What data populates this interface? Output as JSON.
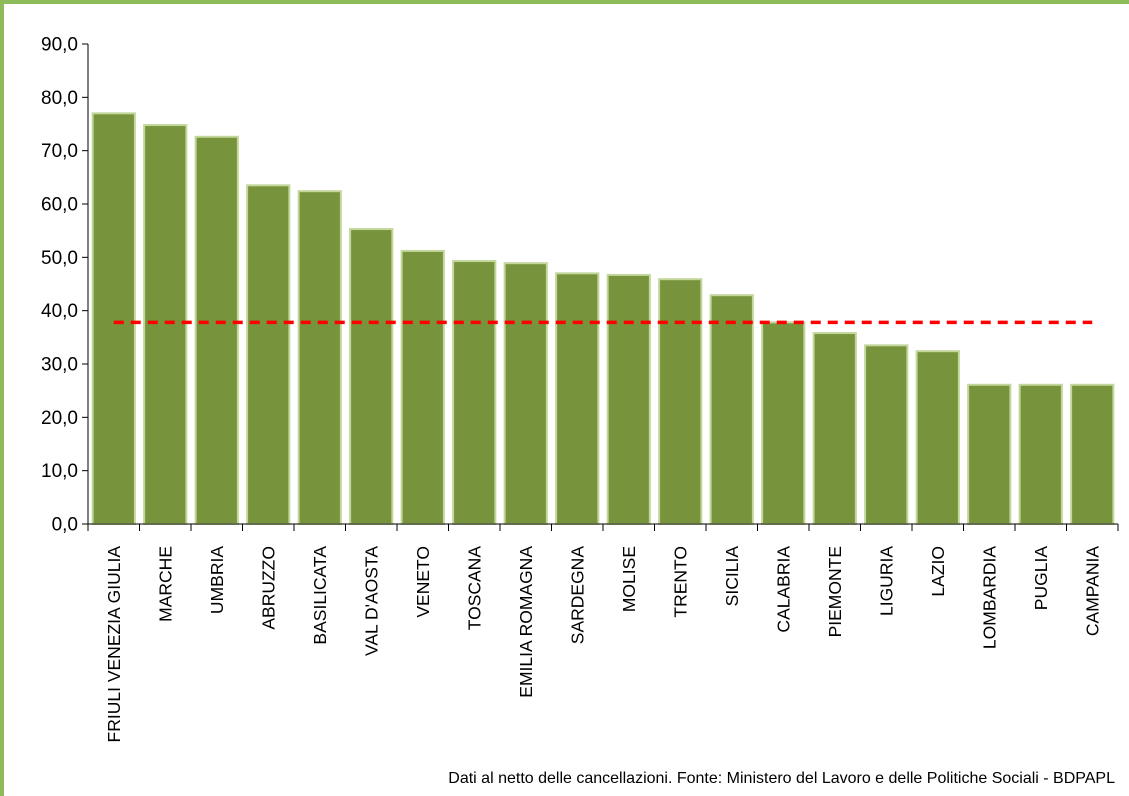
{
  "chart_data": {
    "type": "bar",
    "categories": [
      "FRIULI VENEZIA  GIULIA",
      "MARCHE",
      "UMBRIA",
      "ABRUZZO",
      "BASILICATA",
      "VAL D'AOSTA",
      "VENETO",
      "TOSCANA",
      "EMILIA ROMAGNA",
      "SARDEGNA",
      "MOLISE",
      "TRENTO",
      "SICILIA",
      "CALABRIA",
      "PIEMONTE",
      "LIGURIA",
      "LAZIO",
      "LOMBARDIA",
      "PUGLIA",
      "CAMPANIA"
    ],
    "values": [
      77.0,
      74.8,
      72.6,
      63.5,
      62.4,
      55.3,
      51.2,
      49.3,
      48.9,
      47.0,
      46.7,
      45.9,
      42.9,
      37.8,
      35.8,
      33.5,
      32.4,
      26.1,
      26.1,
      26.1
    ],
    "reference_line": 37.8,
    "title": "",
    "xlabel": "",
    "ylabel": "",
    "ylim": [
      0,
      90
    ],
    "yticks": [
      "0,0",
      "10,0",
      "20,0",
      "30,0",
      "40,0",
      "50,0",
      "60,0",
      "70,0",
      "80,0",
      "90,0"
    ],
    "ytick_values": [
      0,
      10,
      20,
      30,
      40,
      50,
      60,
      70,
      80,
      90
    ],
    "grid": false,
    "legend": "none",
    "colors": {
      "bar_fill": "#77933c",
      "bar_edge": "#c3d69b",
      "reference_line": "#ff0000",
      "frame": "#8fbc5a",
      "axis": "#000000"
    }
  },
  "source_note": "Dati al netto delle cancellazioni. Fonte: Ministero del Lavoro e delle Politiche Sociali - BDPAPL"
}
